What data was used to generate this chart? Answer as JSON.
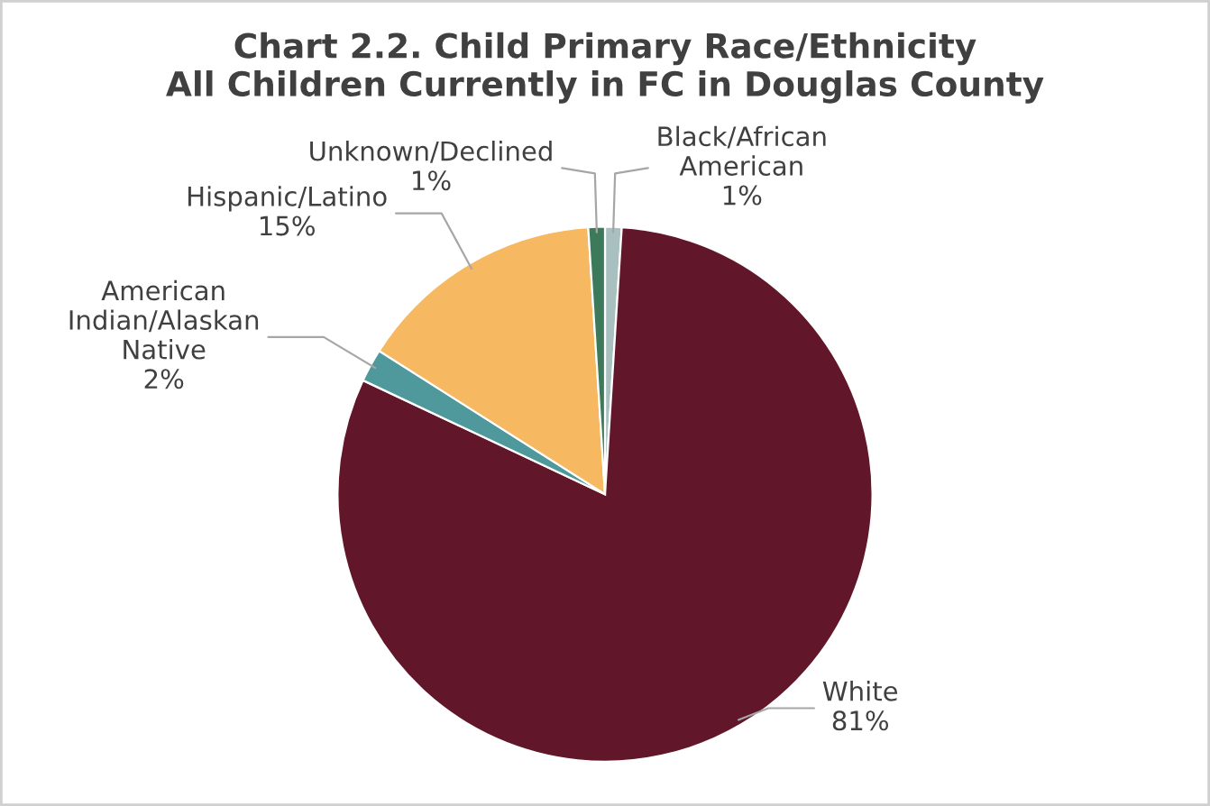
{
  "chart_data": {
    "type": "pie",
    "title": "Chart 2.2. Child Primary Race/Ethnicity\nAll Children Currently in FC in Douglas County",
    "categories": [
      "Black/African American",
      "White",
      "American Indian/Alaskan Native",
      "Hispanic/Latino",
      "Unknown/Declined"
    ],
    "values": [
      1,
      81,
      2,
      15,
      1
    ],
    "colors": [
      "#a8c0c0",
      "#611729",
      "#4f999c",
      "#f6b860",
      "#3d7a5c"
    ],
    "value_labels": [
      "1%",
      "81%",
      "2%",
      "15%",
      "1%"
    ]
  }
}
